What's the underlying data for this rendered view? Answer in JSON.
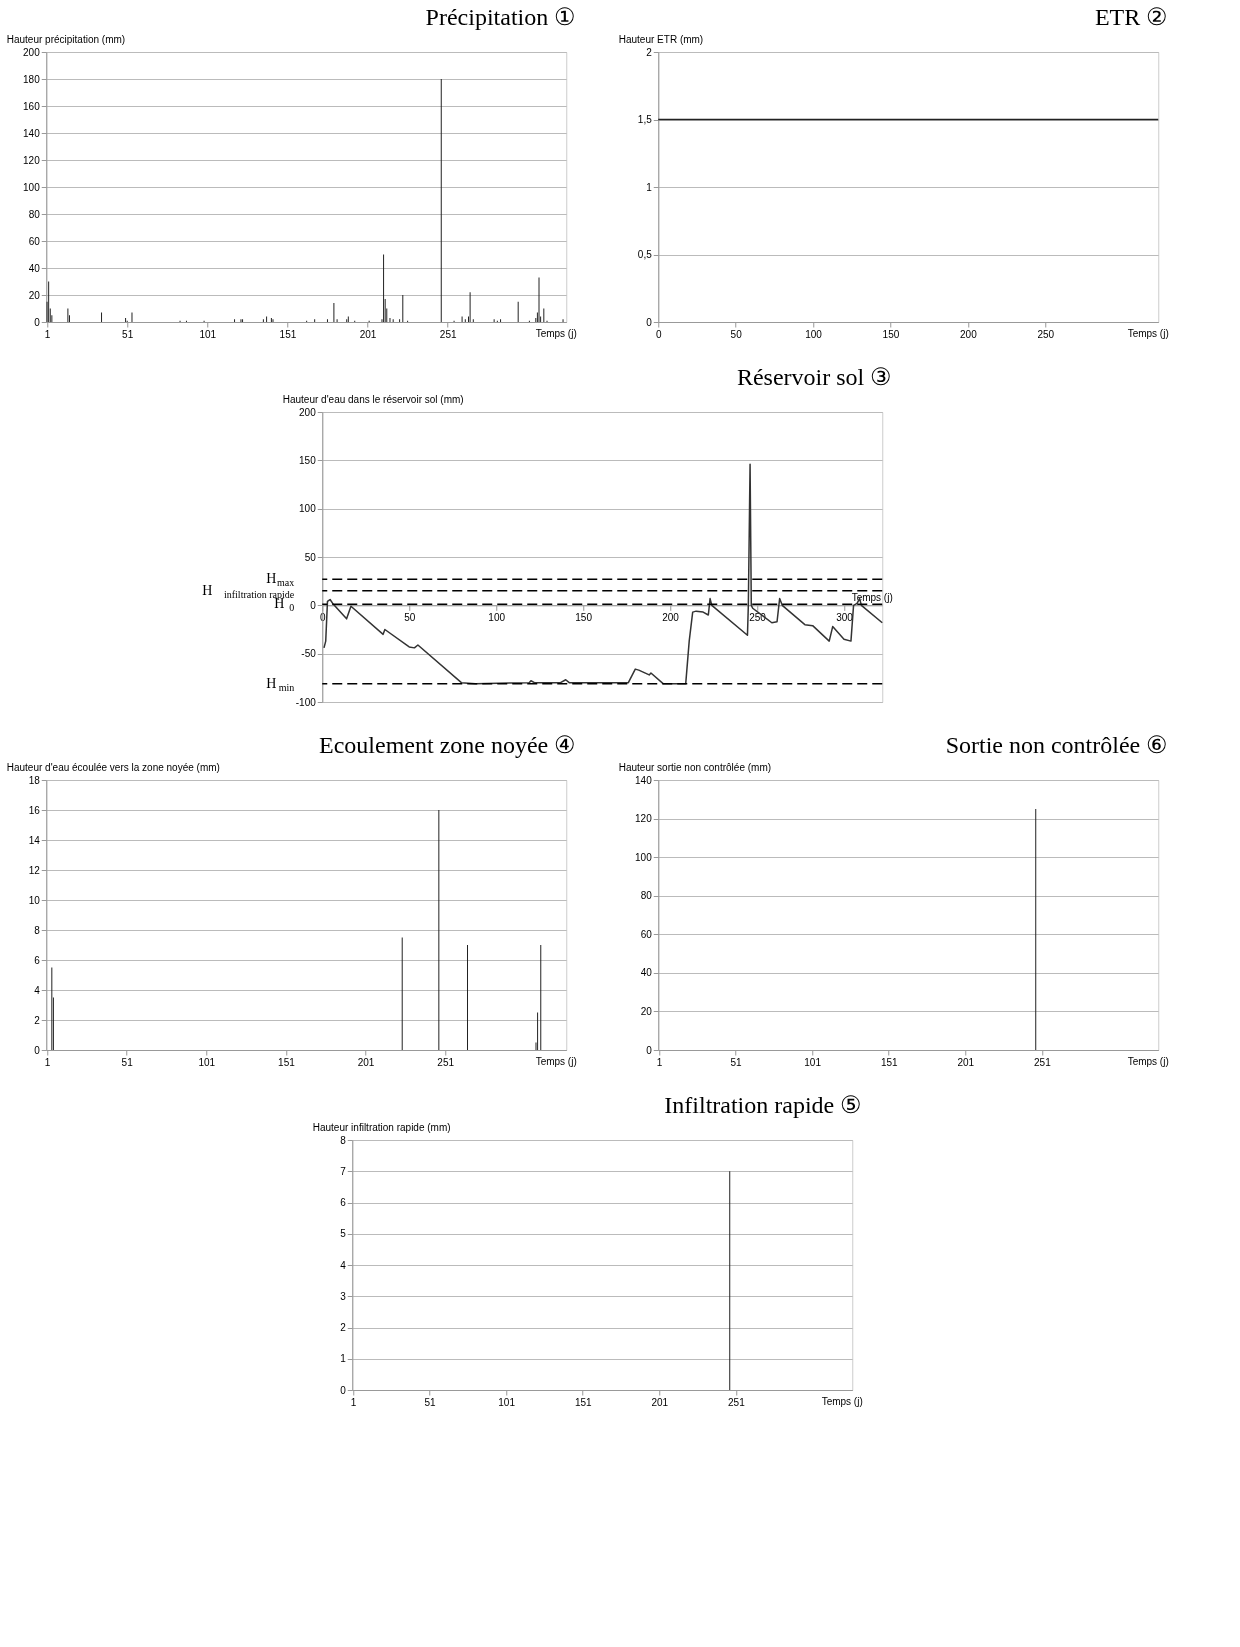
{
  "chart_data": [
    {
      "type": "bar",
      "title": "Précipitation ①",
      "ylabel": "Hauteur précipitation (mm)",
      "xlabel": "Temps (j)",
      "color": "#222222",
      "grid": "y",
      "x": [
        1,
        2,
        3,
        4,
        14,
        15,
        35,
        50,
        51,
        54,
        84,
        88,
        99,
        118,
        122,
        123,
        136,
        138,
        141,
        142,
        163,
        168,
        176,
        180,
        182,
        188,
        189,
        193,
        202,
        210,
        211,
        212,
        213,
        215,
        217,
        221,
        223,
        226,
        247,
        255,
        260,
        262,
        264,
        265,
        267,
        280,
        282,
        284,
        295,
        302,
        306,
        307,
        308,
        309,
        311,
        313,
        323
      ],
      "values": [
        15,
        30,
        10,
        5,
        10,
        5,
        7,
        3,
        1,
        7,
        1,
        1,
        1,
        2,
        2,
        2,
        2,
        4,
        3,
        2,
        1,
        2,
        2,
        14,
        2,
        2,
        4,
        1,
        1,
        2,
        50,
        17,
        10,
        3,
        2,
        2,
        20,
        1,
        180,
        1,
        4,
        2,
        4,
        22,
        2,
        2,
        1,
        2,
        15,
        1,
        3,
        7,
        33,
        4,
        10,
        1,
        2
      ],
      "xlim": [
        0.5,
        325
      ],
      "xticks": [
        1,
        51,
        101,
        151,
        201,
        251
      ],
      "ylim": [
        0,
        200
      ],
      "yticks": [
        0,
        20,
        40,
        60,
        80,
        100,
        120,
        140,
        160,
        180,
        200
      ]
    },
    {
      "type": "line",
      "title": "ETR ②",
      "ylabel": "Hauteur ETR (mm)",
      "xlabel": "Temps (j)",
      "color": "#222222",
      "grid": "y",
      "x": [
        0,
        323
      ],
      "values": [
        1.5,
        1.5
      ],
      "xlim": [
        0,
        323
      ],
      "xticks": [
        0,
        50,
        100,
        150,
        200,
        250
      ],
      "ylim": [
        0,
        2
      ],
      "yticks": [
        0,
        {
          "value": 0.5,
          "label": "0,5"
        },
        1,
        {
          "value": 1.5,
          "label": "1,5"
        },
        2
      ]
    },
    {
      "type": "line",
      "title": "Réservoir sol ③",
      "ylabel": "Hauteur d'eau dans le réservoir sol (mm)",
      "xlabel": "Temps (j)",
      "color": "#333333",
      "grid": "y",
      "x": [
        1,
        2,
        3,
        4.5,
        6,
        14,
        16.5,
        35,
        36,
        50,
        53,
        55,
        80,
        88,
        119,
        120,
        122,
        137,
        140,
        142,
        176,
        180,
        182,
        188,
        189,
        196,
        209,
        211,
        213,
        215,
        219,
        222,
        223,
        224,
        244.5,
        245,
        246,
        246.7,
        247.5,
        258.5,
        261.5,
        263,
        264.5,
        277.5,
        282,
        291.5,
        293.5,
        300,
        304,
        305.5,
        307.5,
        309,
        310,
        322
      ],
      "values": [
        -44,
        -37,
        4,
        6,
        2,
        -14,
        -1,
        -30,
        -25,
        -43,
        -44,
        -41,
        -80,
        -81,
        -80,
        -78,
        -80,
        -80,
        -77,
        -80,
        -80,
        -66,
        -67,
        -72,
        -70,
        -81,
        -81,
        -37,
        -7,
        -6,
        -7,
        -10,
        7,
        0,
        -31,
        0,
        146,
        0,
        -3,
        -18,
        -17,
        7,
        0,
        -20,
        -21,
        -37,
        -22,
        -35,
        -37,
        0,
        2,
        7,
        0,
        -18
      ],
      "xlim": [
        0,
        322
      ],
      "xticks": [
        0,
        50,
        100,
        150,
        200,
        250,
        300
      ],
      "ylim": [
        -100,
        200
      ],
      "yticks": [
        -100,
        -50,
        0,
        50,
        100,
        150,
        200
      ],
      "ref_lines": [
        {
          "axis": "y",
          "value": 27,
          "label": "H$_{max}$",
          "line_style": "dashed",
          "color": "#000000"
        },
        {
          "axis": "y",
          "value": 15,
          "label": "H$_{infiltration rapide}$",
          "line_style": "dashed",
          "color": "#000000"
        },
        {
          "axis": "y",
          "value": 1,
          "label": "H$_{0}$",
          "line_style": "dashed",
          "color": "#000000"
        },
        {
          "axis": "y",
          "value": -81,
          "label": "H$_{min}$",
          "line_style": "dashed",
          "color": "#000000"
        }
      ]
    },
    {
      "type": "bar",
      "title": "Ecoulement zone noyée ④",
      "ylabel": "Hauteur d'eau écoulée vers la zone noyée (mm)",
      "xlabel": "Temps (j)",
      "color": "#222222",
      "grid": "y",
      "x": [
        4,
        5,
        224,
        247,
        265,
        308,
        309,
        311
      ],
      "values": [
        5.5,
        3.5,
        7.5,
        16,
        7,
        0.5,
        2.5,
        7
      ],
      "xlim": [
        0.5,
        327
      ],
      "xticks": [
        1,
        51,
        101,
        151,
        201,
        251
      ],
      "ylim": [
        0,
        18
      ],
      "yticks": [
        0,
        2,
        4,
        6,
        8,
        10,
        12,
        14,
        16,
        18
      ]
    },
    {
      "type": "bar",
      "title": "Sortie non contrôlée ⑥",
      "ylabel": "Hauteur sortie non contrôlée (mm)",
      "xlabel": "Temps (j)",
      "color": "#222222",
      "grid": "y",
      "x": [
        247
      ],
      "values": [
        125
      ],
      "xlim": [
        0.5,
        327
      ],
      "xticks": [
        1,
        51,
        101,
        151,
        201,
        251
      ],
      "ylim": [
        0,
        140
      ],
      "yticks": [
        0,
        20,
        40,
        60,
        80,
        100,
        120,
        140
      ]
    },
    {
      "type": "bar",
      "title": "Infiltration rapide ⑤",
      "ylabel": "Hauteur infiltration rapide (mm)",
      "xlabel": "Temps (j)",
      "color": "#222222",
      "grid": "y",
      "x": [
        247
      ],
      "values": [
        7
      ],
      "xlim": [
        0.5,
        327
      ],
      "xticks": [
        1,
        51,
        101,
        151,
        201,
        251
      ],
      "ylim": [
        0,
        8
      ],
      "yticks": [
        0,
        1,
        2,
        3,
        4,
        5,
        6,
        7,
        8
      ]
    }
  ]
}
